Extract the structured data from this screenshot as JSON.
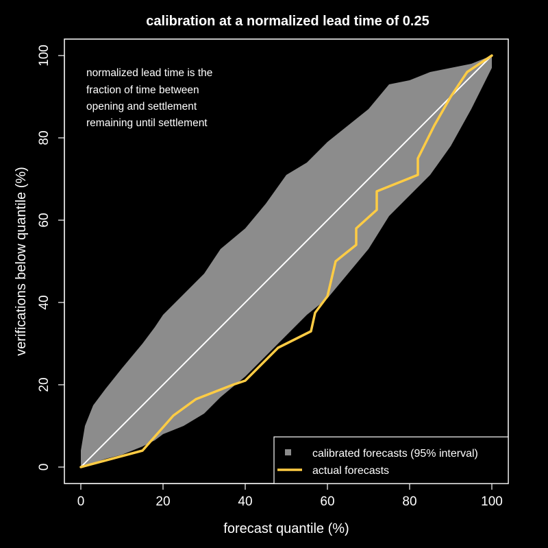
{
  "chart_data": {
    "type": "line",
    "title": "calibration at a normalized lead time of 0.25",
    "xlabel": "forecast quantile (%)",
    "ylabel": "verifications below quantile (%)",
    "xlim": [
      -4,
      104
    ],
    "ylim": [
      -4,
      104
    ],
    "x_ticks": [
      0,
      20,
      40,
      60,
      80,
      100
    ],
    "y_ticks": [
      0,
      20,
      40,
      60,
      80,
      100
    ],
    "annotation": [
      "normalized lead time is the",
      "fraction of time between",
      "opening and settlement",
      "remaining until settlement"
    ],
    "legend": {
      "position": "bottom-right",
      "entries": [
        "calibrated forecasts (95% interval)",
        "actual forecasts"
      ]
    },
    "colors": {
      "background": "#000000",
      "band": "#8c8c8c",
      "reference_line": "#ffffff",
      "actual_line": "#ffcc44"
    },
    "series": [
      {
        "name": "calibrated forecasts (95% interval)",
        "kind": "band",
        "x": [
          0,
          1,
          3,
          6,
          10,
          15,
          18,
          20,
          25,
          30,
          34,
          40,
          45,
          50,
          55,
          60,
          65,
          70,
          75,
          80,
          85,
          90,
          95,
          100
        ],
        "upper": [
          4,
          10,
          15,
          19,
          24,
          30,
          34,
          37,
          42,
          47,
          53,
          58,
          64,
          71,
          74,
          79,
          83,
          87,
          93,
          94,
          96,
          97,
          98,
          100
        ],
        "lower": [
          0,
          0.5,
          1,
          2,
          3,
          5,
          6.5,
          8,
          10,
          13,
          17,
          22,
          27,
          32,
          37,
          41,
          47,
          53,
          61,
          66,
          71,
          78,
          87,
          97
        ]
      },
      {
        "name": "reference",
        "kind": "line",
        "x": [
          0,
          100
        ],
        "y": [
          0,
          100
        ]
      },
      {
        "name": "actual forecasts",
        "kind": "line",
        "x": [
          0,
          15,
          22.5,
          28,
          37,
          40,
          48,
          56,
          57,
          60,
          62,
          67,
          67,
          72,
          72,
          82,
          82,
          86,
          90,
          94,
          100
        ],
        "y": [
          0,
          4,
          12.5,
          16.5,
          20,
          21,
          29,
          33,
          37.5,
          41.5,
          50,
          54,
          58,
          62.5,
          67,
          71,
          75,
          83,
          90,
          96,
          100
        ]
      }
    ]
  }
}
